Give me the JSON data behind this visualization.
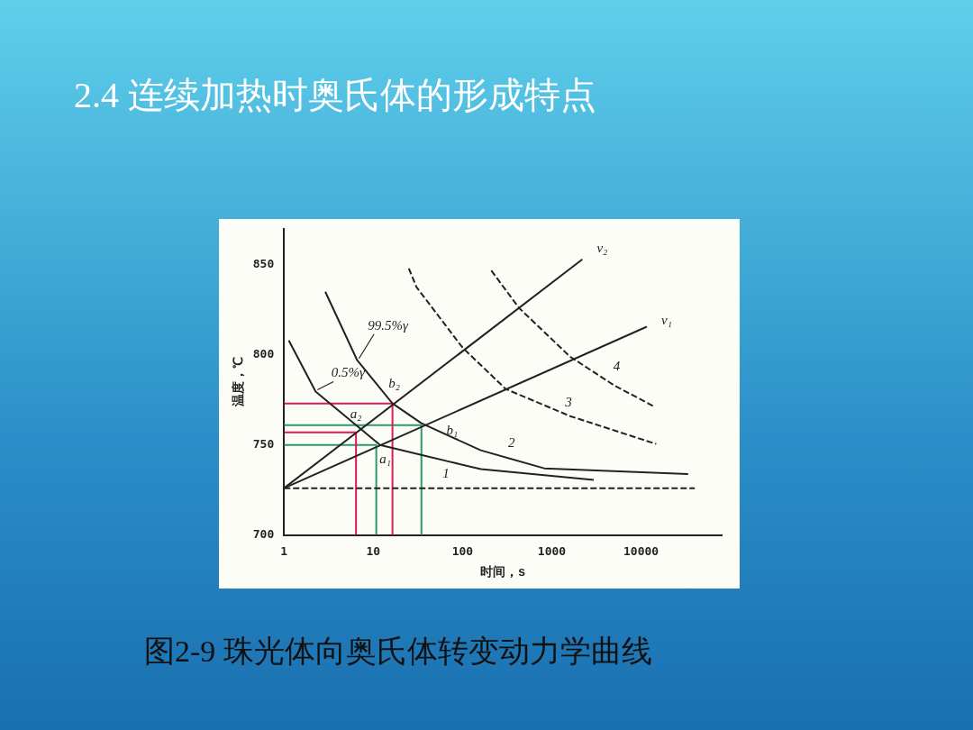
{
  "chart_data": {
    "type": "line",
    "title": "2.4  连续加热时奥氏体的形成特点",
    "xlabel": "时间，s",
    "ylabel": "温度，℃",
    "log": "x",
    "xlim": [
      1,
      80000
    ],
    "ylim": [
      700,
      870
    ],
    "xticks": [
      1,
      10,
      100,
      1000,
      10000
    ],
    "yticks": [
      700,
      750,
      800,
      850
    ],
    "grid": false,
    "marker": "none",
    "legend": false,
    "series": [
      {
        "color": "#222222",
        "line_style": "solid",
        "x": [
          1.13,
          2.26,
          11.9,
          67,
          160,
          2950
        ],
        "values": [
          808,
          779.6,
          750,
          741,
          736.6,
          730.6
        ]
      },
      {
        "color": "#222222",
        "line_style": "solid",
        "x": [
          2.9,
          6.6,
          16.4,
          34.6,
          160,
          822,
          33700
        ],
        "values": [
          835,
          797,
          773,
          762,
          747,
          737,
          733.8
        ]
      },
      {
        "color": "#222222",
        "line_style": "dashed",
        "x": [
          25,
          30.5,
          100,
          305,
          1600,
          14800
        ],
        "values": [
          848,
          837.6,
          804,
          781,
          766,
          750.5
        ]
      },
      {
        "color": "#222222",
        "line_style": "dashed",
        "x": [
          210,
          430,
          1600,
          5100,
          13800
        ],
        "values": [
          846.8,
          826,
          799,
          782.8,
          771.5
        ]
      },
      {
        "color": "#222222",
        "line_style": "dashed",
        "x": [
          1,
          40000
        ],
        "values": [
          726,
          726
        ]
      },
      {
        "color": "#222222",
        "line_style": "solid",
        "x": [
          1,
          2200
        ],
        "values": [
          726,
          853
        ]
      },
      {
        "color": "#222222",
        "line_style": "solid",
        "x": [
          1,
          11600
        ],
        "values": [
          726,
          815.6
        ]
      },
      {
        "color": "#e0185a",
        "line_style": "solid",
        "x": [
          1,
          16.4,
          16.4
        ],
        "values": [
          773,
          773,
          700
        ]
      },
      {
        "color": "#e0185a",
        "line_style": "solid",
        "x": [
          1,
          6.4,
          6.4
        ],
        "values": [
          757,
          757,
          700
        ]
      },
      {
        "color": "#2a9a6a",
        "line_style": "solid",
        "x": [
          1,
          34.6,
          34.6
        ],
        "values": [
          761,
          761,
          700
        ]
      },
      {
        "color": "#2a9a6a",
        "line_style": "solid",
        "x": [
          1,
          10.8,
          10.8
        ],
        "values": [
          750,
          750,
          700
        ]
      }
    ],
    "annotations": [
      "图2-9  珠光体向奥氏体转变动力学曲线",
      {
        "text": "99.5%γ",
        "x": 6.6,
        "y": 797
      },
      {
        "text": "0.5%γ",
        "x": 2.26,
        "y": 779.6
      },
      {
        "text": "b₂",
        "x": 16.4,
        "y": 773
      },
      {
        "text": "a₂",
        "x": 6.4,
        "y": 757
      },
      {
        "text": "a₁",
        "x": 10.8,
        "y": 750
      },
      {
        "text": "b₁",
        "x": 34.6,
        "y": 761
      },
      {
        "text": "v₂",
        "x": 2200,
        "y": 853
      },
      {
        "text": "v₁",
        "x": 11600,
        "y": 815.6
      },
      "1",
      "2",
      "3",
      "4"
    ]
  }
}
